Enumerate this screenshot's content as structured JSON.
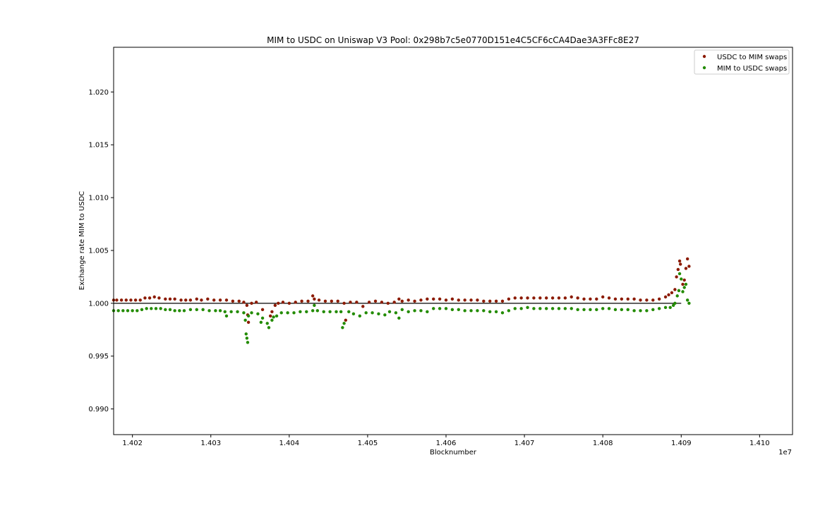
{
  "chart_data": {
    "type": "scatter",
    "title": "MIM to USDC on Uniswap V3 Pool: 0x298b7c5e0770D151e4C5CF6cCA4Dae3A3FFc8E27",
    "xlabel": "Blocknumber",
    "ylabel": "Exchange rate MIM to USDC",
    "x_offset_label": "1e7",
    "xlim": [
      1.40176,
      1.41042
    ],
    "ylim": [
      0.98757,
      1.02423
    ],
    "x_ticks": [
      1.402,
      1.403,
      1.404,
      1.405,
      1.406,
      1.407,
      1.408,
      1.409,
      1.41
    ],
    "x_tick_labels": [
      "1.402",
      "1.403",
      "1.404",
      "1.405",
      "1.406",
      "1.407",
      "1.408",
      "1.409",
      "1.410"
    ],
    "y_ticks": [
      0.99,
      0.995,
      1.0,
      1.005,
      1.01,
      1.015,
      1.02
    ],
    "y_tick_labels": [
      "0.990",
      "0.995",
      "1.000",
      "1.005",
      "1.010",
      "1.015",
      "1.020"
    ],
    "grid": false,
    "legend_position": "top-right",
    "reference_line": {
      "y": 1.0,
      "x_range": [
        1.40176,
        1.409
      ],
      "color": "#000000"
    },
    "series": [
      {
        "name": "USDC to MIM swaps",
        "color": "#8b1a00",
        "points": [
          [
            1.40176,
            1.0003
          ],
          [
            1.4018,
            1.0003
          ],
          [
            1.40186,
            1.0003
          ],
          [
            1.40192,
            1.0003
          ],
          [
            1.40198,
            1.0003
          ],
          [
            1.40204,
            1.0003
          ],
          [
            1.4021,
            1.0003
          ],
          [
            1.40216,
            1.0005
          ],
          [
            1.40222,
            1.0005
          ],
          [
            1.40228,
            1.0006
          ],
          [
            1.40234,
            1.0005
          ],
          [
            1.40242,
            1.0004
          ],
          [
            1.40248,
            1.0004
          ],
          [
            1.40254,
            1.0004
          ],
          [
            1.40262,
            1.0003
          ],
          [
            1.40268,
            1.0003
          ],
          [
            1.40274,
            1.0003
          ],
          [
            1.40282,
            1.0004
          ],
          [
            1.40288,
            1.0003
          ],
          [
            1.40296,
            1.0004
          ],
          [
            1.40304,
            1.0003
          ],
          [
            1.40312,
            1.0003
          ],
          [
            1.4032,
            1.0003
          ],
          [
            1.40328,
            1.0002
          ],
          [
            1.40336,
            1.0002
          ],
          [
            1.40342,
            1.0001
          ],
          [
            1.40346,
            0.9998
          ],
          [
            1.40347,
            0.9989
          ],
          [
            1.40348,
            0.9982
          ],
          [
            1.40352,
            1.0
          ],
          [
            1.40358,
            1.0001
          ],
          [
            1.40366,
            0.9994
          ],
          [
            1.40376,
            0.9988
          ],
          [
            1.40378,
            0.9992
          ],
          [
            1.40382,
            0.9998
          ],
          [
            1.40386,
            1.0
          ],
          [
            1.40392,
            1.0001
          ],
          [
            1.404,
            1.0
          ],
          [
            1.40408,
            1.0001
          ],
          [
            1.40416,
            1.0002
          ],
          [
            1.40424,
            1.0002
          ],
          [
            1.40432,
            1.0004
          ],
          [
            1.4043,
            1.0007
          ],
          [
            1.40438,
            1.0003
          ],
          [
            1.40446,
            1.0002
          ],
          [
            1.40454,
            1.0002
          ],
          [
            1.40462,
            1.0002
          ],
          [
            1.4047,
            1.0
          ],
          [
            1.40472,
            0.9984
          ],
          [
            1.40478,
            1.0001
          ],
          [
            1.40486,
            1.0001
          ],
          [
            1.40494,
            0.9997
          ],
          [
            1.40502,
            1.0001
          ],
          [
            1.4051,
            1.0002
          ],
          [
            1.40518,
            1.0001
          ],
          [
            1.40526,
            1.0
          ],
          [
            1.40534,
            1.0001
          ],
          [
            1.4054,
            1.0004
          ],
          [
            1.40544,
            1.0002
          ],
          [
            1.40552,
            1.0003
          ],
          [
            1.4056,
            1.0002
          ],
          [
            1.40568,
            1.0003
          ],
          [
            1.40576,
            1.0004
          ],
          [
            1.40584,
            1.0004
          ],
          [
            1.40592,
            1.0004
          ],
          [
            1.406,
            1.0003
          ],
          [
            1.40608,
            1.0004
          ],
          [
            1.40616,
            1.0003
          ],
          [
            1.40624,
            1.0003
          ],
          [
            1.40632,
            1.0003
          ],
          [
            1.4064,
            1.0003
          ],
          [
            1.40648,
            1.0002
          ],
          [
            1.40656,
            1.0002
          ],
          [
            1.40664,
            1.0002
          ],
          [
            1.40672,
            1.0002
          ],
          [
            1.4068,
            1.0004
          ],
          [
            1.40688,
            1.0005
          ],
          [
            1.40696,
            1.0005
          ],
          [
            1.40704,
            1.0005
          ],
          [
            1.40712,
            1.0005
          ],
          [
            1.4072,
            1.0005
          ],
          [
            1.40728,
            1.0005
          ],
          [
            1.40736,
            1.0005
          ],
          [
            1.40744,
            1.0005
          ],
          [
            1.40752,
            1.0005
          ],
          [
            1.4076,
            1.0006
          ],
          [
            1.40768,
            1.0005
          ],
          [
            1.40776,
            1.0004
          ],
          [
            1.40784,
            1.0004
          ],
          [
            1.40792,
            1.0004
          ],
          [
            1.408,
            1.0006
          ],
          [
            1.40808,
            1.0005
          ],
          [
            1.40816,
            1.0004
          ],
          [
            1.40824,
            1.0004
          ],
          [
            1.40832,
            1.0004
          ],
          [
            1.4084,
            1.0004
          ],
          [
            1.40848,
            1.0003
          ],
          [
            1.40856,
            1.0003
          ],
          [
            1.40864,
            1.0003
          ],
          [
            1.40872,
            1.0004
          ],
          [
            1.4088,
            1.0006
          ],
          [
            1.40884,
            1.0008
          ],
          [
            1.40888,
            1.001
          ],
          [
            1.40892,
            1.0013
          ],
          [
            1.40894,
            1.0025
          ],
          [
            1.40896,
            1.0032
          ],
          [
            1.40898,
            1.004
          ],
          [
            1.40899,
            1.0037
          ],
          [
            1.40902,
            1.0018
          ],
          [
            1.40904,
            1.0022
          ],
          [
            1.40906,
            1.0033
          ],
          [
            1.40908,
            1.0042
          ],
          [
            1.4091,
            1.0035
          ]
        ]
      },
      {
        "name": "MIM to USDC swaps",
        "color": "#228b00",
        "points": [
          [
            1.40176,
            0.9993
          ],
          [
            1.40182,
            0.9993
          ],
          [
            1.40188,
            0.9993
          ],
          [
            1.40194,
            0.9993
          ],
          [
            1.402,
            0.9993
          ],
          [
            1.40206,
            0.9993
          ],
          [
            1.40212,
            0.9994
          ],
          [
            1.40218,
            0.9995
          ],
          [
            1.40224,
            0.9995
          ],
          [
            1.4023,
            0.9995
          ],
          [
            1.40236,
            0.9995
          ],
          [
            1.40242,
            0.9994
          ],
          [
            1.40248,
            0.9994
          ],
          [
            1.40254,
            0.9993
          ],
          [
            1.4026,
            0.9993
          ],
          [
            1.40266,
            0.9993
          ],
          [
            1.40274,
            0.9994
          ],
          [
            1.40282,
            0.9994
          ],
          [
            1.4029,
            0.9994
          ],
          [
            1.40298,
            0.9993
          ],
          [
            1.40306,
            0.9993
          ],
          [
            1.40312,
            0.9993
          ],
          [
            1.40318,
            0.9992
          ],
          [
            1.4032,
            0.9988
          ],
          [
            1.40326,
            0.9992
          ],
          [
            1.40334,
            0.9992
          ],
          [
            1.40342,
            0.9991
          ],
          [
            1.40344,
            0.9984
          ],
          [
            1.40345,
            0.9971
          ],
          [
            1.40346,
            0.9967
          ],
          [
            1.40347,
            0.9963
          ],
          [
            1.40348,
            0.9988
          ],
          [
            1.40352,
            0.9991
          ],
          [
            1.4036,
            0.999
          ],
          [
            1.40364,
            0.9982
          ],
          [
            1.40366,
            0.9986
          ],
          [
            1.40372,
            0.9981
          ],
          [
            1.40374,
            0.9977
          ],
          [
            1.40378,
            0.9984
          ],
          [
            1.4038,
            0.9987
          ],
          [
            1.40384,
            0.9988
          ],
          [
            1.4039,
            0.9991
          ],
          [
            1.40398,
            0.9991
          ],
          [
            1.40406,
            0.9991
          ],
          [
            1.40414,
            0.9992
          ],
          [
            1.40422,
            0.9992
          ],
          [
            1.4043,
            0.9993
          ],
          [
            1.40432,
            0.9998
          ],
          [
            1.40436,
            0.9993
          ],
          [
            1.40444,
            0.9992
          ],
          [
            1.40452,
            0.9992
          ],
          [
            1.4046,
            0.9992
          ],
          [
            1.40466,
            0.9992
          ],
          [
            1.40468,
            0.9977
          ],
          [
            1.4047,
            0.9981
          ],
          [
            1.40476,
            0.9992
          ],
          [
            1.40482,
            0.999
          ],
          [
            1.4049,
            0.9988
          ],
          [
            1.40498,
            0.9991
          ],
          [
            1.40506,
            0.9991
          ],
          [
            1.40514,
            0.999
          ],
          [
            1.40522,
            0.9989
          ],
          [
            1.40528,
            0.9992
          ],
          [
            1.40536,
            0.9991
          ],
          [
            1.4054,
            0.9986
          ],
          [
            1.40544,
            0.9994
          ],
          [
            1.40552,
            0.9992
          ],
          [
            1.4056,
            0.9993
          ],
          [
            1.40568,
            0.9993
          ],
          [
            1.40576,
            0.9992
          ],
          [
            1.40584,
            0.9995
          ],
          [
            1.40592,
            0.9995
          ],
          [
            1.406,
            0.9995
          ],
          [
            1.40608,
            0.9994
          ],
          [
            1.40616,
            0.9994
          ],
          [
            1.40624,
            0.9993
          ],
          [
            1.40632,
            0.9993
          ],
          [
            1.4064,
            0.9993
          ],
          [
            1.40648,
            0.9993
          ],
          [
            1.40656,
            0.9992
          ],
          [
            1.40664,
            0.9992
          ],
          [
            1.40672,
            0.9991
          ],
          [
            1.4068,
            0.9993
          ],
          [
            1.40688,
            0.9995
          ],
          [
            1.40696,
            0.9995
          ],
          [
            1.40704,
            0.9996
          ],
          [
            1.40712,
            0.9995
          ],
          [
            1.4072,
            0.9995
          ],
          [
            1.40728,
            0.9995
          ],
          [
            1.40736,
            0.9995
          ],
          [
            1.40744,
            0.9995
          ],
          [
            1.40752,
            0.9995
          ],
          [
            1.4076,
            0.9995
          ],
          [
            1.40768,
            0.9994
          ],
          [
            1.40776,
            0.9994
          ],
          [
            1.40784,
            0.9994
          ],
          [
            1.40792,
            0.9994
          ],
          [
            1.408,
            0.9995
          ],
          [
            1.40808,
            0.9995
          ],
          [
            1.40816,
            0.9994
          ],
          [
            1.40824,
            0.9994
          ],
          [
            1.40832,
            0.9994
          ],
          [
            1.4084,
            0.9993
          ],
          [
            1.40848,
            0.9993
          ],
          [
            1.40856,
            0.9993
          ],
          [
            1.40864,
            0.9994
          ],
          [
            1.40872,
            0.9995
          ],
          [
            1.4088,
            0.9996
          ],
          [
            1.40886,
            0.9996
          ],
          [
            1.4089,
            0.9998
          ],
          [
            1.40892,
            1.0
          ],
          [
            1.40895,
            1.0007
          ],
          [
            1.40897,
            1.0012
          ],
          [
            1.40898,
            1.0028
          ],
          [
            1.409,
            1.0023
          ],
          [
            1.40902,
            1.0011
          ],
          [
            1.40904,
            1.0015
          ],
          [
            1.40906,
            1.0018
          ],
          [
            1.40908,
            1.0003
          ],
          [
            1.4091,
            1.0
          ]
        ]
      }
    ]
  }
}
